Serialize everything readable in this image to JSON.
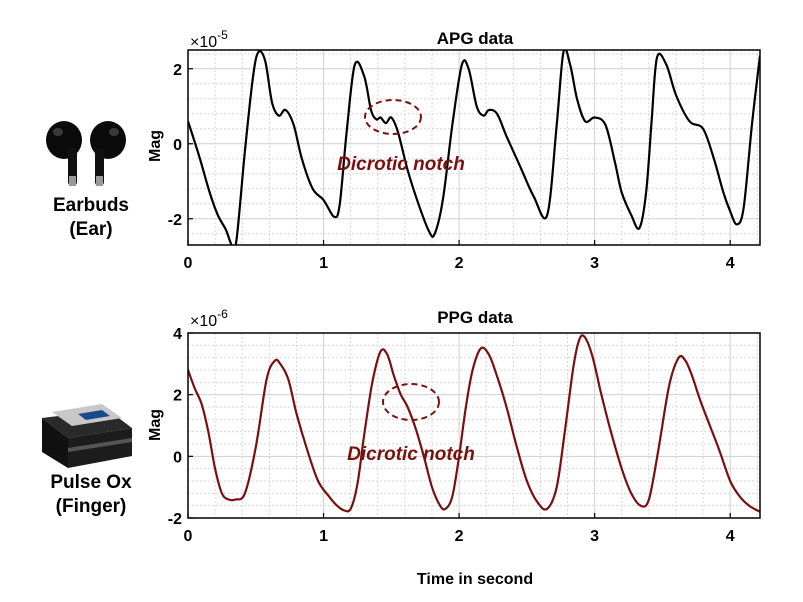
{
  "colors": {
    "apg_line": "#000000",
    "ppg_line": "#7a0f0f",
    "annotation": "#7a1010",
    "grid": "#d8d8d8"
  },
  "devices": {
    "earbuds": {
      "label1": "Earbuds",
      "label2": "(Ear)",
      "icon": "earbuds-icon"
    },
    "pulseox": {
      "label1": "Pulse Ox",
      "label2": "(Finger)",
      "icon": "pulse-oximeter-icon"
    }
  },
  "xlabel": "Time in second",
  "chart_data": [
    {
      "type": "line",
      "title": "APG data",
      "ylabel": "Mag",
      "exponent_base": "×10",
      "exponent_power": "-5",
      "xlim": [
        0,
        4.22
      ],
      "ylim": [
        -2.7,
        2.5
      ],
      "xticks": [
        0,
        1,
        2,
        3,
        4
      ],
      "yticks": [
        -2,
        0,
        2
      ],
      "xticklabels": [
        "0",
        "1",
        "2",
        "3",
        "4"
      ],
      "yticklabels": [
        "-2",
        "0",
        "2"
      ],
      "grid": true,
      "annotation": "Dicrotic notch",
      "series": [
        {
          "x": [
            0,
            0.08,
            0.16,
            0.22,
            0.28,
            0.33,
            0.36,
            0.42,
            0.48,
            0.52,
            0.57,
            0.62,
            0.67,
            0.72,
            0.78,
            0.84,
            0.92,
            1.0,
            1.08,
            1.12,
            1.17,
            1.23,
            1.3,
            1.35,
            1.39,
            1.42,
            1.46,
            1.5,
            1.55,
            1.62,
            1.7,
            1.78,
            1.82,
            1.88,
            1.95,
            2.02,
            2.07,
            2.13,
            2.18,
            2.22,
            2.28,
            2.35,
            2.45,
            2.55,
            2.65,
            2.72,
            2.77,
            2.82,
            2.87,
            2.93,
            3.0,
            3.08,
            3.15,
            3.2,
            3.27,
            3.33,
            3.38,
            3.42,
            3.46,
            3.53,
            3.6,
            3.7,
            3.8,
            3.88,
            3.95,
            4.0,
            4.05,
            4.1,
            4.16,
            4.22
          ],
          "y": [
            0.6,
            -0.3,
            -1.3,
            -1.9,
            -2.3,
            -2.75,
            -2.5,
            -0.2,
            1.8,
            2.45,
            2.2,
            1.1,
            0.75,
            0.9,
            0.5,
            -0.4,
            -1.2,
            -1.5,
            -1.95,
            -1.6,
            0.3,
            2.1,
            1.8,
            0.9,
            0.65,
            0.7,
            0.55,
            0.7,
            0.3,
            -0.7,
            -1.6,
            -2.35,
            -2.4,
            -1.5,
            0.5,
            2.1,
            2.0,
            1.0,
            0.75,
            0.9,
            0.8,
            0.2,
            -0.6,
            -1.4,
            -1.9,
            0.5,
            2.45,
            2.1,
            1.2,
            0.6,
            0.7,
            0.5,
            -0.5,
            -1.3,
            -1.9,
            -2.25,
            -1.3,
            0.6,
            2.3,
            2.1,
            1.3,
            0.6,
            0.4,
            -0.4,
            -1.3,
            -1.8,
            -2.15,
            -1.7,
            0.5,
            2.35
          ]
        }
      ]
    },
    {
      "type": "line",
      "title": "PPG data",
      "ylabel": "Mag",
      "exponent_base": "×10",
      "exponent_power": "-6",
      "xlim": [
        0,
        4.22
      ],
      "ylim": [
        -2,
        4
      ],
      "xticks": [
        0,
        1,
        2,
        3,
        4
      ],
      "yticks": [
        -2,
        0,
        2,
        4
      ],
      "xticklabels": [
        "0",
        "1",
        "2",
        "3",
        "4"
      ],
      "yticklabels": [
        "-2",
        "0",
        "2",
        "4"
      ],
      "grid": true,
      "annotation": "Dicrotic notch",
      "series": [
        {
          "x": [
            0,
            0.05,
            0.1,
            0.15,
            0.2,
            0.25,
            0.3,
            0.35,
            0.42,
            0.5,
            0.58,
            0.64,
            0.68,
            0.74,
            0.8,
            0.88,
            0.96,
            1.04,
            1.1,
            1.15,
            1.2,
            1.25,
            1.3,
            1.36,
            1.42,
            1.47,
            1.52,
            1.57,
            1.62,
            1.68,
            1.74,
            1.8,
            1.86,
            1.9,
            1.95,
            2.0,
            2.05,
            2.1,
            2.16,
            2.22,
            2.28,
            2.35,
            2.42,
            2.5,
            2.58,
            2.65,
            2.72,
            2.78,
            2.84,
            2.88,
            2.92,
            2.98,
            3.05,
            3.12,
            3.2,
            3.27,
            3.34,
            3.4,
            3.47,
            3.55,
            3.62,
            3.67,
            3.72,
            3.78,
            3.85,
            3.92,
            4.0,
            4.07,
            4.14,
            4.22
          ],
          "y": [
            2.8,
            2.2,
            1.7,
            0.8,
            -0.4,
            -1.2,
            -1.4,
            -1.4,
            -1.2,
            0.3,
            2.5,
            3.1,
            3.0,
            2.5,
            1.4,
            0.2,
            -0.8,
            -1.3,
            -1.6,
            -1.75,
            -1.7,
            -0.9,
            0.7,
            2.4,
            3.4,
            3.3,
            2.6,
            2.0,
            1.6,
            0.9,
            0.0,
            -1.0,
            -1.6,
            -1.7,
            -1.3,
            0.0,
            1.6,
            2.8,
            3.5,
            3.3,
            2.6,
            1.6,
            0.4,
            -0.8,
            -1.5,
            -1.7,
            -1.0,
            0.8,
            2.8,
            3.7,
            3.9,
            3.3,
            2.0,
            0.8,
            -0.4,
            -1.2,
            -1.6,
            -1.4,
            0.2,
            2.3,
            3.2,
            3.1,
            2.6,
            1.8,
            1.0,
            0.2,
            -0.8,
            -1.3,
            -1.6,
            -1.8
          ]
        }
      ]
    }
  ]
}
